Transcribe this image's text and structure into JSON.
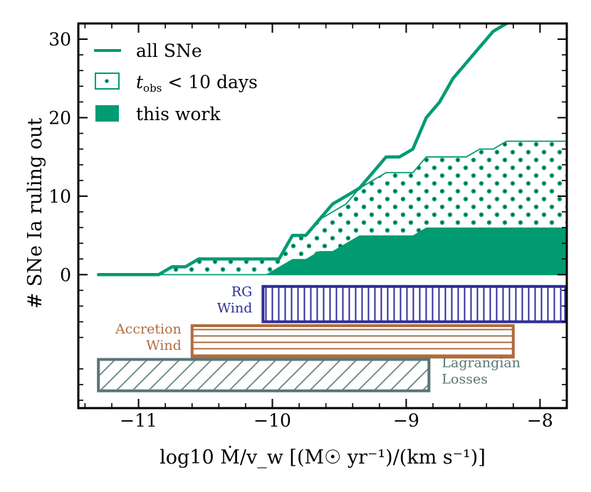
{
  "chart_data": {
    "type": "area",
    "xlabel": "log10 Ṁ/v_w [(M☉ yr⁻¹)/(km s⁻¹)]",
    "ylabel": "# SNe Ia ruling out",
    "xlim": [
      -11.45,
      -7.8
    ],
    "ylim": [
      -17,
      32
    ],
    "x_ticks": [
      -11,
      -10,
      -9,
      -8
    ],
    "x_tick_labels": [
      "−11",
      "−10",
      "−9",
      "−8"
    ],
    "y_ticks": [
      0,
      10,
      20,
      30
    ],
    "y_tick_labels": [
      "0",
      "10",
      "20",
      "30"
    ],
    "legend": {
      "placement": "top-left",
      "entries": [
        {
          "name": "all_sne",
          "label": "all SNe",
          "style": "line"
        },
        {
          "name": "tobs",
          "label_main": "t",
          "label_sub": "obs",
          "label_rest": " < 10 days",
          "style": "dotted-hatch"
        },
        {
          "name": "this_work",
          "label": "this work",
          "style": "filled"
        }
      ]
    },
    "series": [
      {
        "name": "all SNe",
        "x": [
          -11.3,
          -10.85,
          -10.75,
          -10.65,
          -10.55,
          -10.3,
          -10.05,
          -9.95,
          -9.85,
          -9.75,
          -9.65,
          -9.55,
          -9.45,
          -9.35,
          -9.25,
          -9.15,
          -9.05,
          -8.95,
          -8.85,
          -8.75,
          -8.65,
          -8.55,
          -8.45,
          -8.35,
          -8.25
        ],
        "values": [
          0,
          0,
          1,
          1,
          2,
          2,
          2,
          2,
          5,
          5,
          7,
          9,
          10,
          11,
          13,
          15,
          15,
          16,
          20,
          22,
          25,
          27,
          29,
          31,
          32
        ]
      },
      {
        "name": "t_obs < 10 days",
        "x": [
          -11.3,
          -10.85,
          -10.75,
          -10.65,
          -10.55,
          -10.3,
          -10.05,
          -9.95,
          -9.85,
          -9.75,
          -9.65,
          -9.55,
          -9.45,
          -9.35,
          -9.25,
          -9.15,
          -9.05,
          -8.95,
          -8.85,
          -8.75,
          -8.65,
          -8.55,
          -8.45,
          -8.35,
          -8.25,
          -7.8
        ],
        "values": [
          0,
          0,
          1,
          1,
          2,
          2,
          2,
          2,
          5,
          5,
          7,
          8,
          9,
          11,
          12,
          13,
          13,
          13,
          15,
          15,
          15,
          15,
          16,
          16,
          17,
          17
        ]
      },
      {
        "name": "this work",
        "x": [
          -10.05,
          -9.95,
          -9.85,
          -9.75,
          -9.65,
          -9.55,
          -9.45,
          -9.35,
          -9.25,
          -9.15,
          -9.05,
          -8.95,
          -8.85,
          -8.75,
          -7.8
        ],
        "values": [
          0,
          1,
          2,
          2,
          3,
          3,
          4,
          5,
          5,
          5,
          5,
          5,
          6,
          6,
          6
        ]
      }
    ],
    "bands": [
      {
        "name": "rg-wind",
        "label_lines": [
          "RG",
          "Wind"
        ],
        "x_range": [
          -10.07,
          -7.8
        ],
        "y_range": [
          -6,
          -1.5
        ],
        "color": "#2e2e9a",
        "hatch": "vertical",
        "label_side": "left"
      },
      {
        "name": "accretion-wind",
        "label_lines": [
          "Accretion",
          "Wind"
        ],
        "x_range": [
          -10.6,
          -8.2
        ],
        "y_range": [
          -10.5,
          -6.5
        ],
        "color": "#b06c3e",
        "hatch": "horizontal",
        "label_side": "left"
      },
      {
        "name": "lagrangian-losses",
        "label_lines": [
          "Lagrangian",
          "Losses"
        ],
        "x_range": [
          -11.3,
          -8.83
        ],
        "y_range": [
          -14.8,
          -10.8
        ],
        "color": "#5a7575",
        "hatch": "diagonal",
        "label_side": "right"
      }
    ],
    "colors": {
      "main": "#009b72",
      "dot": "#145c4a",
      "axes": "#000000"
    }
  }
}
